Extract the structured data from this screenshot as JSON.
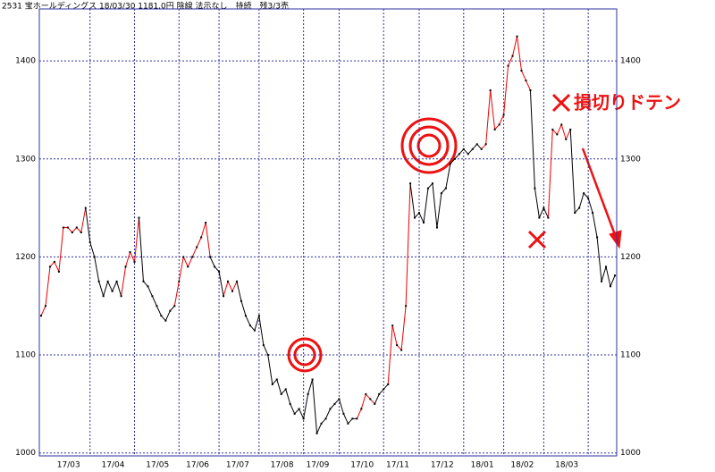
{
  "chart_data": {
    "type": "line",
    "title": "2531 宝ホールディングス 18/03/30 1181.0円 陰線 法示なし　持続　残3/3売",
    "annotation": "損切りドテン",
    "annotation_color": "#ee1111",
    "frame_color": "#3030a0",
    "grid": true,
    "ylim": [
      997,
      1453
    ],
    "yticks": [
      1000,
      1100,
      1200,
      1300,
      1400
    ],
    "xlim": [
      0,
      129
    ],
    "xticks": [
      {
        "value": 11,
        "label": "17/03"
      },
      {
        "value": 21,
        "label": "17/04"
      },
      {
        "value": 31,
        "label": "17/05"
      },
      {
        "value": 40,
        "label": "17/06"
      },
      {
        "value": 49,
        "label": "17/07"
      },
      {
        "value": 59,
        "label": "17/08"
      },
      {
        "value": 67,
        "label": "17/09"
      },
      {
        "value": 77,
        "label": "17/10"
      },
      {
        "value": 85,
        "label": "17/11"
      },
      {
        "value": 95,
        "label": "17/12"
      },
      {
        "value": 104,
        "label": "18/01"
      },
      {
        "value": 113,
        "label": "18/02"
      },
      {
        "value": 123,
        "label": "18/03"
      }
    ],
    "series": [
      {
        "values": [
          1140,
          1150,
          1190,
          1195,
          1185,
          1230,
          1230,
          1225,
          1230,
          1225,
          1250,
          1215,
          1200,
          1175,
          1160,
          1175,
          1165,
          1175,
          1160,
          1190,
          1205,
          1195,
          1240,
          1175,
          1170,
          1160,
          1150,
          1140,
          1135,
          1145,
          1150,
          1175,
          1200,
          1190,
          1200,
          1210,
          1220,
          1235,
          1200,
          1190,
          1185,
          1160,
          1175,
          1165,
          1175,
          1155,
          1140,
          1130,
          1125,
          1140,
          1110,
          1100,
          1070,
          1075,
          1060,
          1065,
          1050,
          1040,
          1045,
          1035,
          1060,
          1075,
          1020,
          1030,
          1035,
          1045,
          1050,
          1055,
          1040,
          1030,
          1035,
          1035,
          1045,
          1060,
          1055,
          1050,
          1060,
          1065,
          1070,
          1130,
          1110,
          1105,
          1150,
          1275,
          1240,
          1245,
          1235,
          1270,
          1275,
          1230,
          1265,
          1270,
          1295,
          1300,
          1305,
          1310,
          1305,
          1310,
          1315,
          1310,
          1315,
          1370,
          1330,
          1335,
          1345,
          1395,
          1405,
          1425,
          1390,
          1380,
          1370,
          1270,
          1240,
          1250,
          1240,
          1330,
          1325,
          1335,
          1320,
          1330,
          1245,
          1250,
          1265,
          1260,
          1245,
          1220,
          1175,
          1190,
          1170,
          1181
        ],
        "colors": [
          "#000",
          "#e00",
          "#e00",
          "#e00",
          "#e00",
          "#e00",
          "#e00",
          "#e00",
          "#e00",
          "#e00",
          "#e00",
          "#000",
          "#000",
          "#000",
          "#000",
          "#000",
          "#000",
          "#000",
          "#000",
          "#e00",
          "#e00",
          "#e00",
          "#e00",
          "#000",
          "#000",
          "#000",
          "#000",
          "#000",
          "#000",
          "#000",
          "#000",
          "#e00",
          "#e00",
          "#e00",
          "#e00",
          "#e00",
          "#e00",
          "#e00",
          "#e00",
          "#000",
          "#000",
          "#000",
          "#e00",
          "#e00",
          "#e00",
          "#000",
          "#000",
          "#000",
          "#000",
          "#000",
          "#000",
          "#000",
          "#000",
          "#000",
          "#000",
          "#000",
          "#000",
          "#000",
          "#000",
          "#000",
          "#000",
          "#000",
          "#000",
          "#000",
          "#000",
          "#000",
          "#000",
          "#000",
          "#000",
          "#000",
          "#000",
          "#000",
          "#e00",
          "#e00",
          "#e00",
          "#e00",
          "#000",
          "#000",
          "#000",
          "#e00",
          "#e00",
          "#e00",
          "#e00",
          "#e00",
          "#000",
          "#000",
          "#000",
          "#000",
          "#000",
          "#000",
          "#000",
          "#000",
          "#000",
          "#000",
          "#000",
          "#000",
          "#000",
          "#000",
          "#000",
          "#000",
          "#e00",
          "#e00",
          "#e00",
          "#e00",
          "#e00",
          "#e00",
          "#e00",
          "#e00",
          "#e00",
          "#e00",
          "#e00",
          "#000",
          "#000",
          "#000",
          "#000",
          "#e00",
          "#e00",
          "#e00",
          "#e00",
          "#e00",
          "#000",
          "#000",
          "#000",
          "#000",
          "#000",
          "#000",
          "#000",
          "#000",
          "#000",
          "#000"
        ]
      }
    ]
  }
}
